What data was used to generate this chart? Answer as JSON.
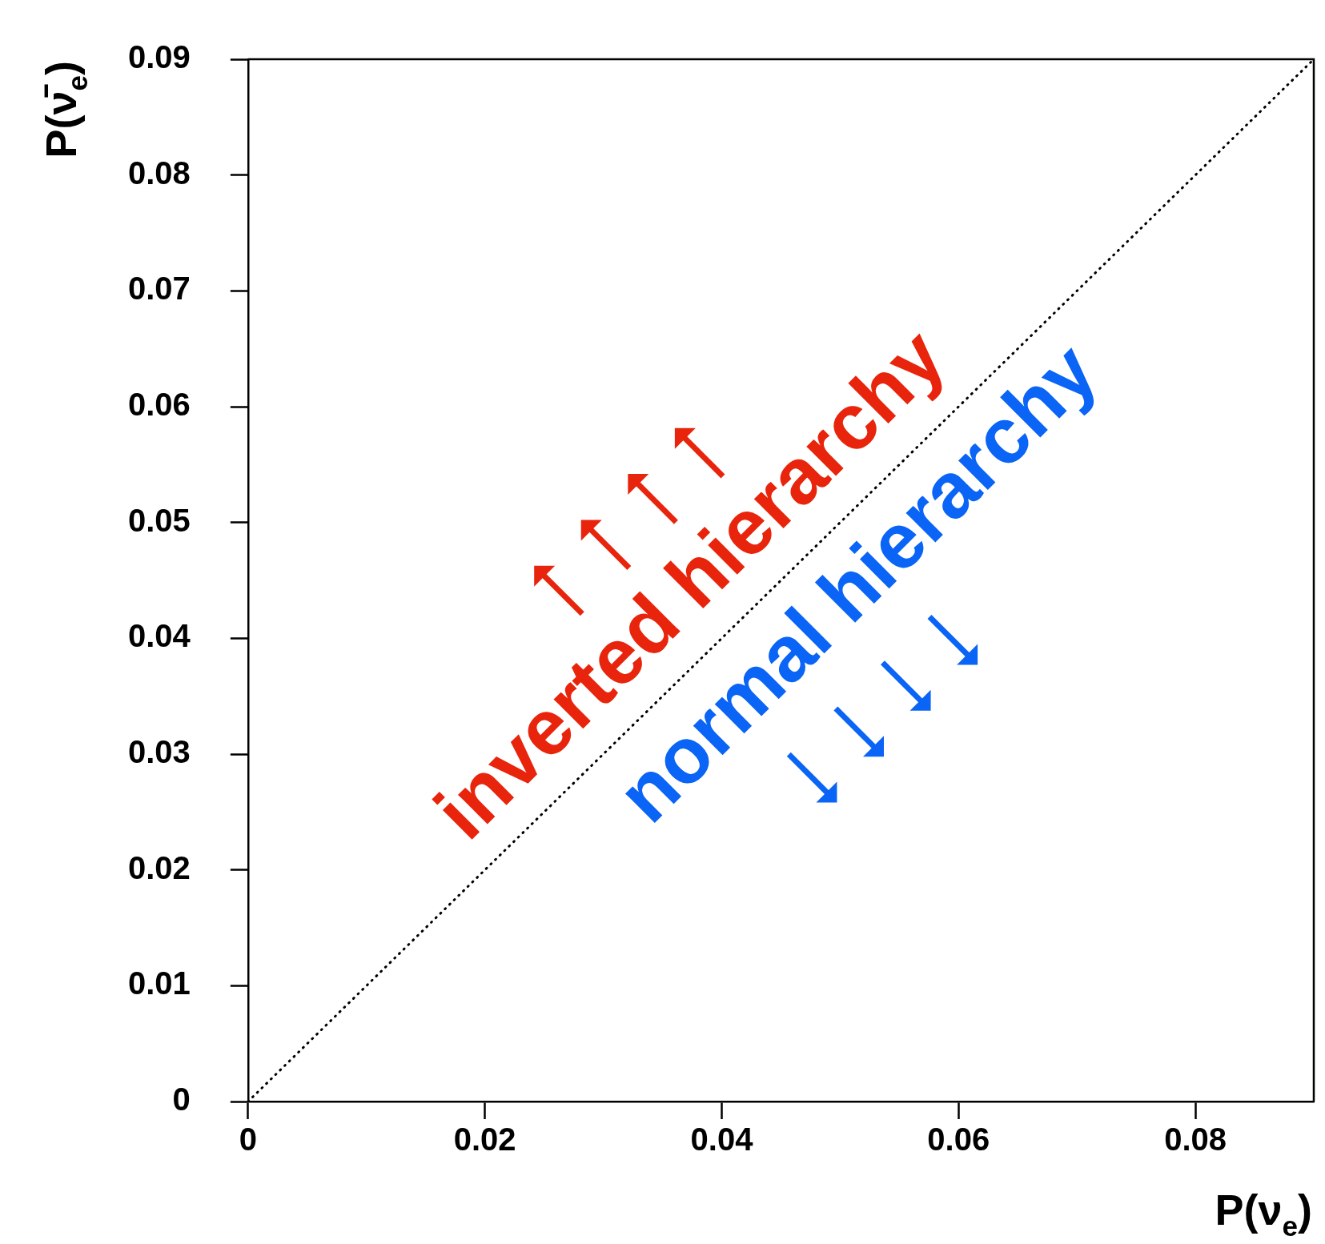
{
  "chart_data": {
    "type": "line",
    "xlabel": "P(ν$_{e}$)",
    "ylabel": "P(ν̄$_{e}$)",
    "annotations": [
      "inverted hierarchy",
      "normal hierarchy"
    ],
    "series": [
      {
        "color": "#000000",
        "x": [
          0,
          0.09
        ],
        "values": [
          0,
          0.09
        ],
        "line_style": "dotted",
        "marker": "none"
      }
    ],
    "xlim": [
      0,
      0.09
    ],
    "ylim": [
      0,
      0.09
    ],
    "xticks": [
      0,
      0.02,
      0.04,
      0.06,
      0.08
    ],
    "yticks": [
      0,
      0.01,
      0.02,
      0.03,
      0.04,
      0.05,
      0.06,
      0.07,
      0.08,
      0.09
    ],
    "grid": false,
    "legend": false
  }
}
